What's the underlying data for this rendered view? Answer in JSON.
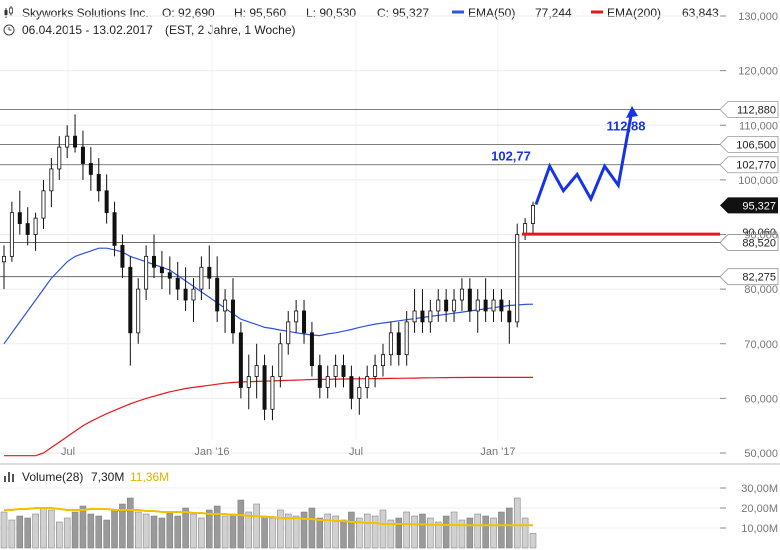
{
  "header": {
    "symbol_icon": "candlestick-icon",
    "clock_icon": "clock-icon",
    "name": "Skyworks Solutions Inc.",
    "open": "O: 92,690",
    "high": "H: 95,560",
    "low": "L: 90,530",
    "close": "C: 95,327",
    "ema50_label": "EMA(50)",
    "ema50_value": "77,244",
    "ema200_label": "EMA(200)",
    "ema200_value": "63,843",
    "date_range": "06.04.2015 - 13.02.2017",
    "period": "(EST, 2 Jahre, 1 Woche)"
  },
  "colors": {
    "ema50": "#2f52e0",
    "ema200": "#e3171e",
    "projection": "#1733e6",
    "support": "#e3171e",
    "volume_bar": "#9a9a9a",
    "volume_avg": "#f2c200",
    "level_line": "#555555",
    "current_badge": "#111111"
  },
  "volume": {
    "label": "Volume(28)",
    "value": "7,30M",
    "avg_value": "11,36M"
  },
  "chart_data": {
    "type": "candlestick",
    "title": "Skyworks Solutions Inc.",
    "x_labels": [
      "Jul",
      "Jan '16",
      "Jul",
      "Jan '17"
    ],
    "y_ticks": [
      50,
      60,
      70,
      80,
      90,
      100,
      110,
      120,
      130
    ],
    "y_tick_labels": [
      "50,000",
      "60,000",
      "70,000",
      "80,000",
      "90,000",
      "100,000",
      "110,000",
      "120,000",
      "130,000"
    ],
    "ylim": [
      50,
      130
    ],
    "horizontal_levels": [
      {
        "value": 112.88,
        "label": "112,880"
      },
      {
        "value": 106.5,
        "label": "106,500"
      },
      {
        "value": 102.77,
        "label": "102,770"
      },
      {
        "value": 88.52,
        "label": "88,520"
      },
      {
        "value": 82.275,
        "label": "82,275"
      }
    ],
    "partial_label": "90,060",
    "current_price": {
      "value": 95.327,
      "label": "95,327"
    },
    "support_line": {
      "value": 90.06
    },
    "projection": {
      "annotations": [
        {
          "label": "102,77",
          "value": 102.77
        },
        {
          "label": "112,88",
          "value": 112.88
        }
      ],
      "path": [
        95.5,
        102.5,
        98.0,
        101.0,
        96.5,
        102.5,
        99.0,
        112.8
      ]
    },
    "candles": [
      [
        85,
        88,
        80,
        86
      ],
      [
        86,
        96,
        85,
        94
      ],
      [
        94,
        98,
        90,
        92
      ],
      [
        92,
        95,
        88,
        90
      ],
      [
        90,
        94,
        87,
        93
      ],
      [
        93,
        100,
        91,
        98
      ],
      [
        98,
        104,
        95,
        102
      ],
      [
        102,
        108,
        100,
        106
      ],
      [
        106,
        110,
        104,
        108
      ],
      [
        108,
        112,
        105,
        106
      ],
      [
        106,
        109,
        100,
        103
      ],
      [
        103,
        106,
        98,
        101
      ],
      [
        101,
        104,
        96,
        98
      ],
      [
        98,
        101,
        92,
        94
      ],
      [
        94,
        96,
        86,
        88
      ],
      [
        88,
        90,
        82,
        84
      ],
      [
        84,
        86,
        66,
        72
      ],
      [
        72,
        82,
        70,
        80
      ],
      [
        80,
        88,
        78,
        86
      ],
      [
        86,
        90,
        82,
        84
      ],
      [
        84,
        87,
        80,
        83
      ],
      [
        83,
        86,
        79,
        82
      ],
      [
        82,
        85,
        78,
        80
      ],
      [
        80,
        84,
        76,
        78
      ],
      [
        78,
        82,
        74,
        80
      ],
      [
        80,
        86,
        78,
        84
      ],
      [
        84,
        88,
        80,
        82
      ],
      [
        82,
        86,
        74,
        76
      ],
      [
        76,
        80,
        72,
        78
      ],
      [
        78,
        82,
        70,
        72
      ],
      [
        72,
        74,
        60,
        62
      ],
      [
        62,
        68,
        58,
        64
      ],
      [
        64,
        70,
        60,
        66
      ],
      [
        66,
        68,
        56,
        58
      ],
      [
        58,
        66,
        56,
        64
      ],
      [
        64,
        72,
        62,
        70
      ],
      [
        70,
        76,
        68,
        74
      ],
      [
        74,
        78,
        72,
        76
      ],
      [
        76,
        78,
        70,
        72
      ],
      [
        72,
        74,
        64,
        66
      ],
      [
        66,
        68,
        60,
        62
      ],
      [
        62,
        66,
        60,
        64
      ],
      [
        64,
        68,
        62,
        66
      ],
      [
        66,
        68,
        62,
        64
      ],
      [
        64,
        66,
        58,
        60
      ],
      [
        60,
        64,
        57,
        62
      ],
      [
        62,
        66,
        60,
        64
      ],
      [
        64,
        68,
        62,
        66
      ],
      [
        66,
        70,
        64,
        68
      ],
      [
        68,
        74,
        66,
        72
      ],
      [
        72,
        74,
        66,
        68
      ],
      [
        68,
        76,
        66,
        74
      ],
      [
        74,
        80,
        72,
        76
      ],
      [
        76,
        80,
        72,
        74
      ],
      [
        74,
        78,
        72,
        76
      ],
      [
        76,
        80,
        74,
        78
      ],
      [
        78,
        80,
        74,
        76
      ],
      [
        76,
        80,
        74,
        78
      ],
      [
        78,
        82,
        76,
        80
      ],
      [
        80,
        82,
        74,
        76
      ],
      [
        76,
        80,
        72,
        78
      ],
      [
        78,
        82,
        74,
        76
      ],
      [
        76,
        80,
        74,
        78
      ],
      [
        78,
        80,
        74,
        76
      ],
      [
        76,
        78,
        70,
        74
      ],
      [
        74,
        92,
        73,
        90
      ],
      [
        90,
        93,
        89,
        92
      ],
      [
        92,
        96,
        90,
        95.3
      ]
    ],
    "ema50": [
      70,
      72,
      74,
      76,
      78,
      80,
      82,
      83.5,
      85,
      86,
      86.5,
      87,
      87.5,
      87.5,
      87.2,
      86.8,
      86,
      85.5,
      85,
      84.5,
      84,
      83.5,
      82.5,
      81.5,
      80.5,
      79.5,
      78.5,
      77.5,
      76.5,
      75.5,
      74.5,
      74,
      73.5,
      73,
      72.8,
      72.5,
      72.3,
      72,
      71.8,
      71.6,
      71.5,
      71.8,
      72,
      72.3,
      72.6,
      73,
      73.3,
      73.6,
      73.8,
      74,
      74.2,
      74.4,
      74.6,
      74.8,
      75,
      75.2,
      75.4,
      75.6,
      75.8,
      76,
      76.2,
      76.4,
      76.6,
      76.8,
      77,
      77.1,
      77.2,
      77.244
    ],
    "ema200": [
      45,
      46,
      47,
      48,
      49,
      50,
      51,
      52,
      53,
      54,
      55,
      55.8,
      56.5,
      57.2,
      57.8,
      58.4,
      59,
      59.5,
      60,
      60.4,
      60.8,
      61.2,
      61.5,
      61.8,
      62,
      62.2,
      62.4,
      62.6,
      62.8,
      62.9,
      63,
      63.05,
      63.1,
      63.15,
      63.2,
      63.25,
      63.3,
      63.35,
      63.4,
      63.45,
      63.5,
      63.5,
      63.52,
      63.54,
      63.56,
      63.58,
      63.6,
      63.62,
      63.64,
      63.66,
      63.68,
      63.7,
      63.72,
      63.74,
      63.76,
      63.78,
      63.8,
      63.82,
      63.83,
      63.84,
      63.843,
      63.843,
      63.843,
      63.843,
      63.843,
      63.843,
      63.843,
      63.843
    ],
    "volume_series": {
      "name": "Volume(28)",
      "values": [
        18,
        14,
        16,
        15,
        17,
        20,
        19,
        13,
        15,
        18,
        21,
        17,
        16,
        14,
        19,
        22,
        25,
        18,
        17,
        16,
        15,
        18,
        16,
        20,
        17,
        15,
        19,
        21,
        16,
        17,
        24,
        18,
        22,
        16,
        15,
        19,
        17,
        16,
        18,
        20,
        15,
        17,
        16,
        14,
        18,
        15,
        17,
        16,
        19,
        14,
        15,
        18,
        16,
        17,
        15,
        13,
        16,
        18,
        14,
        15,
        17,
        16,
        15,
        18,
        20,
        25,
        15,
        7.3
      ],
      "avg": [
        19,
        19,
        19.5,
        19.5,
        20,
        20,
        20,
        19.5,
        19,
        19,
        19,
        19.5,
        19.5,
        19.5,
        19,
        19,
        19,
        19,
        18.5,
        18.5,
        18,
        18,
        18,
        18,
        17.5,
        17.5,
        17,
        17,
        17,
        16.5,
        16.5,
        16,
        16,
        15.5,
        15.5,
        15,
        15,
        15,
        14.5,
        14.5,
        14,
        14,
        13.5,
        13.5,
        13,
        13,
        12.5,
        12.5,
        12,
        12,
        12,
        12,
        11.8,
        11.8,
        11.6,
        11.6,
        11.5,
        11.5,
        11.4,
        11.4,
        11.4,
        11.4,
        11.36,
        11.36,
        11.36,
        11.36,
        11.36,
        11.36
      ],
      "y_tick_labels": [
        "10,00M",
        "20,00M",
        "30,00M"
      ],
      "y_ticks": [
        10,
        20,
        30
      ],
      "ylim": [
        0,
        40
      ]
    }
  }
}
